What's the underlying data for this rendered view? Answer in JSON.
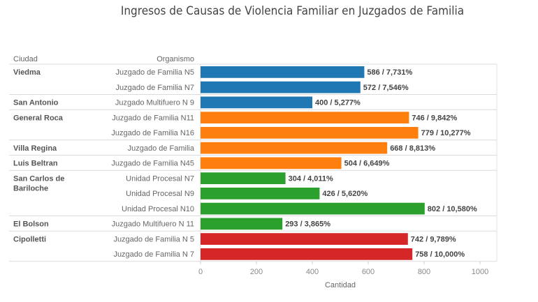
{
  "chart_data": {
    "type": "bar",
    "orientation": "horizontal",
    "title": "Ingresos de Causas de Violencia Familiar en Juzgados de Familia",
    "column_headers": {
      "city": "Ciudad",
      "organism": "Organismo"
    },
    "xlabel": "Cantidad",
    "ylabel": "",
    "xlim": [
      0,
      1000
    ],
    "xticks": [
      "0",
      "200",
      "400",
      "600",
      "800",
      "1000"
    ],
    "grid": false,
    "groups": [
      {
        "city": "Viedma",
        "color": "#1f77b4",
        "rows": [
          {
            "organism": "Juzgado de Familia N5",
            "value": 586,
            "label": "586 / 7,731%"
          },
          {
            "organism": "Juzgado de Familia N7",
            "value": 572,
            "label": "572 / 7,546%"
          }
        ]
      },
      {
        "city": "San Antonio",
        "color": "#1f77b4",
        "rows": [
          {
            "organism": "Juzgado Multifuero N 9",
            "value": 400,
            "label": "400 / 5,277%"
          }
        ]
      },
      {
        "city": "General Roca",
        "color": "#ff7f0e",
        "rows": [
          {
            "organism": "Juzgado de Familia N11",
            "value": 746,
            "label": "746 / 9,842%"
          },
          {
            "organism": "Juzgado de Familia N16",
            "value": 779,
            "label": "779 / 10,277%"
          }
        ]
      },
      {
        "city": "Villa Regina",
        "color": "#ff7f0e",
        "rows": [
          {
            "organism": "Juzgado de Familia",
            "value": 668,
            "label": "668 / 8,813%"
          }
        ]
      },
      {
        "city": "Luis Beltran",
        "color": "#ff7f0e",
        "rows": [
          {
            "organism": "Juzgado de Familia N45",
            "value": 504,
            "label": "504 / 6,649%"
          }
        ]
      },
      {
        "city": "San Carlos de Bariloche",
        "city_lines": [
          "San Carlos de",
          "Bariloche"
        ],
        "color": "#2ca02c",
        "rows": [
          {
            "organism": "Unidad Procesal N7",
            "value": 304,
            "label": "304 / 4,011%"
          },
          {
            "organism": "Unidad Procesal N9",
            "value": 426,
            "label": "426 / 5,620%"
          },
          {
            "organism": "Unidad Procesal N10",
            "value": 802,
            "label": "802 / 10,580%"
          }
        ]
      },
      {
        "city": "El Bolson",
        "color": "#2ca02c",
        "rows": [
          {
            "organism": "Juzgado Multifuero N 11",
            "value": 293,
            "label": "293 / 3,865%"
          }
        ]
      },
      {
        "city": "Cipolletti",
        "color": "#d62728",
        "rows": [
          {
            "organism": "Juzgado de Familia N 5",
            "value": 742,
            "label": "742 / 9,789%"
          },
          {
            "organism": "Juzgado de Familia N 7",
            "value": 758,
            "label": "758 / 10,000%"
          }
        ]
      }
    ]
  }
}
